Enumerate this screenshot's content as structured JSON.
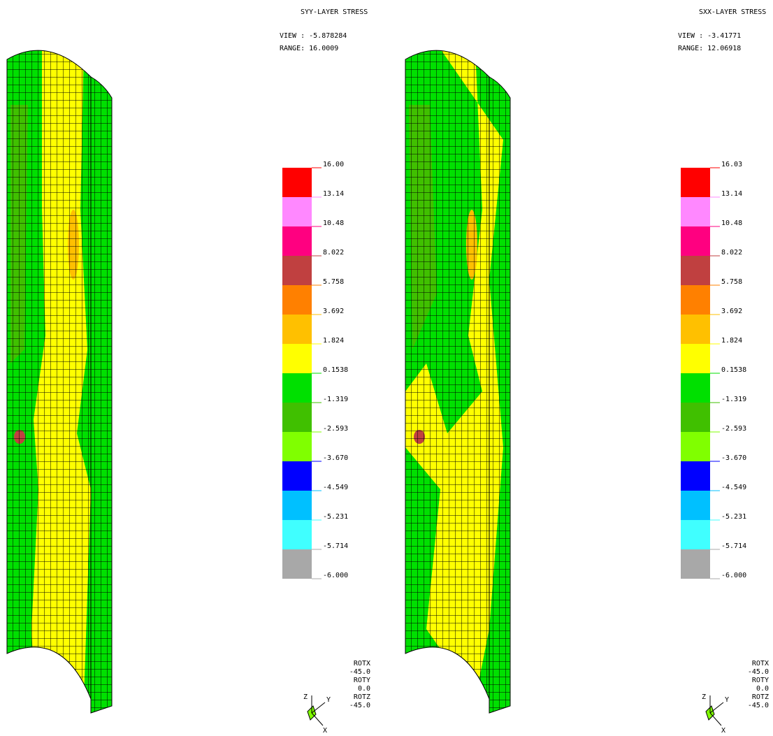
{
  "panels": [
    {
      "title": "SYY-LAYER STRESS",
      "view": "VIEW : -5.878284",
      "range": "RANGE: 16.0009",
      "legend_labels": [
        "16.00",
        "13.14",
        "10.48",
        "8.022",
        "5.758",
        "3.692",
        "1.824",
        "0.1538",
        "-1.319",
        "-2.593",
        "-3.670",
        "-4.549",
        "-5.231",
        "-5.714",
        "-6.000"
      ],
      "rotation": [
        "ROTX",
        "-45.0",
        "ROTY",
        "0.0",
        "ROTZ",
        "-45.0"
      ],
      "axes": [
        "Z",
        "Y",
        "X"
      ]
    },
    {
      "title": "SXX-LAYER STRESS",
      "view": "VIEW : -3.41771",
      "range": "RANGE: 12.06918",
      "legend_labels": [
        "16.03",
        "13.14",
        "10.48",
        "8.022",
        "5.758",
        "3.692",
        "1.824",
        "0.1538",
        "-1.319",
        "-2.593",
        "-3.670",
        "-4.549",
        "-5.231",
        "-5.714",
        "-6.000"
      ],
      "rotation": [
        "ROTX",
        "-45.0",
        "ROTY",
        "0.0",
        "ROTZ",
        "-45.0"
      ],
      "axes": [
        "Z",
        "Y",
        "X"
      ]
    }
  ],
  "legend_colors": [
    "#ff0000",
    "#ff88ff",
    "#ff0080",
    "#c04040",
    "#ff8000",
    "#ffc000",
    "#ffff00",
    "#00e000",
    "#40c000",
    "#80ff00",
    "#0000ff",
    "#00c0ff",
    "#40ffff",
    "#a8a8a8"
  ]
}
